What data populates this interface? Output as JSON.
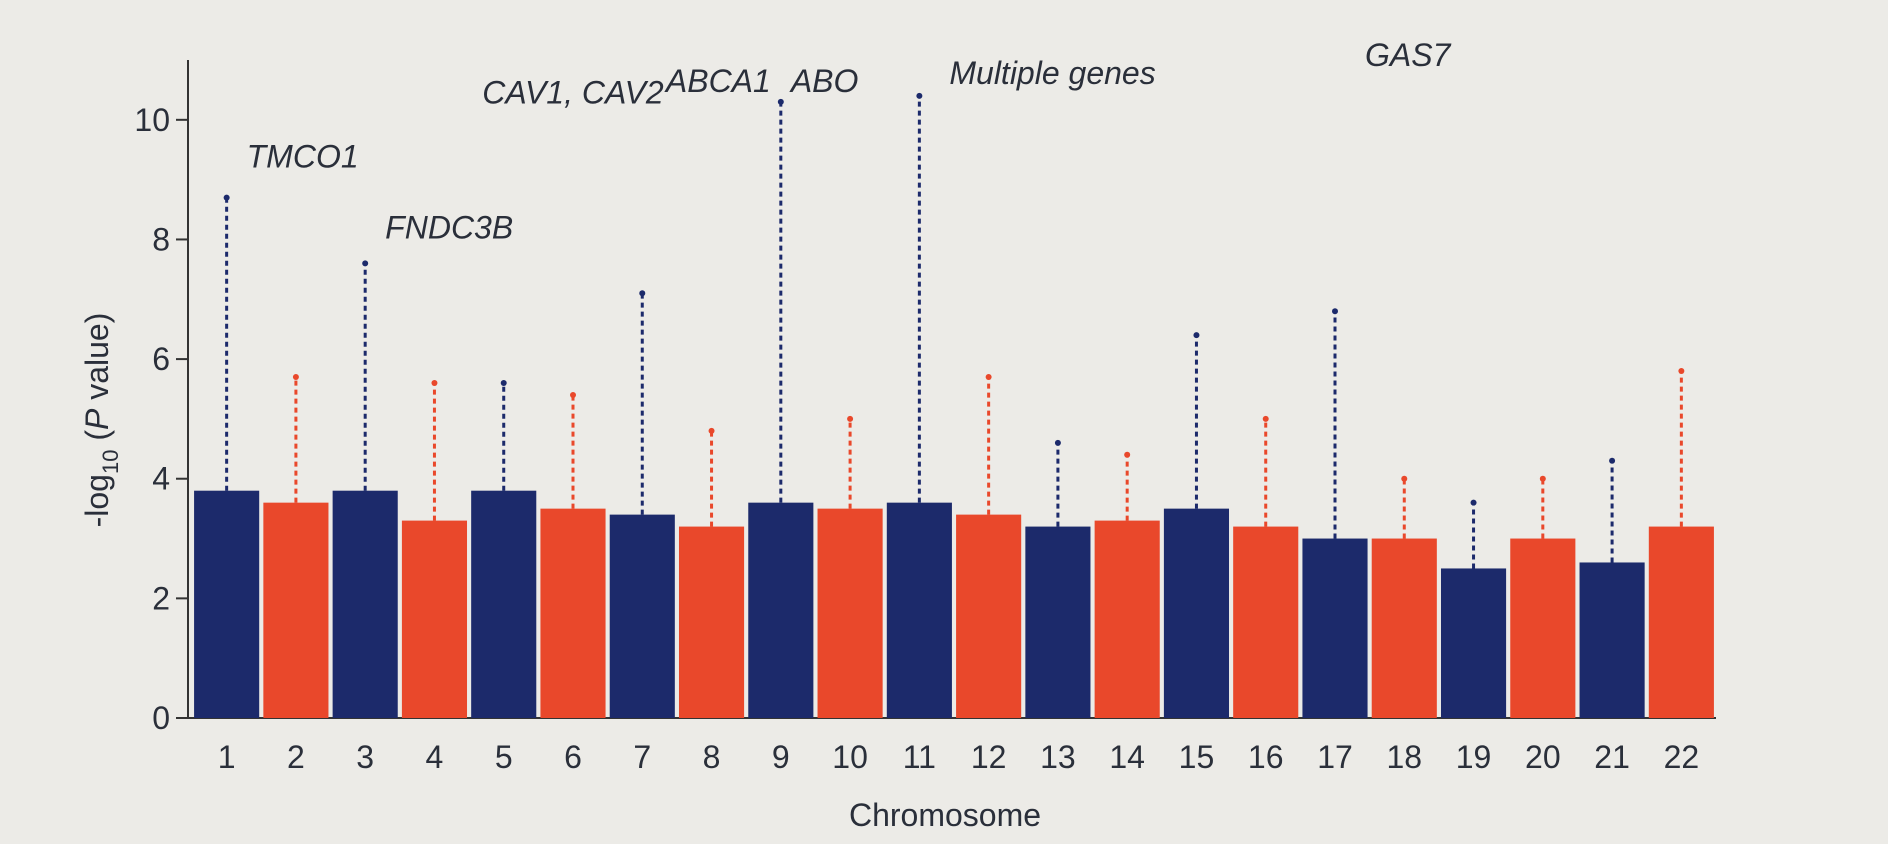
{
  "chart_data": {
    "type": "manhattan",
    "x_label": "Chromosome",
    "y_label": {
      "prefix": "-log",
      "subscript": "10",
      "open": " (",
      "italic": "P",
      "rest": " value)"
    },
    "categories": [
      "1",
      "2",
      "3",
      "4",
      "5",
      "6",
      "7",
      "8",
      "9",
      "10",
      "11",
      "12",
      "13",
      "14",
      "15",
      "16",
      "17",
      "18",
      "19",
      "20",
      "21",
      "22"
    ],
    "values": [
      8.7,
      5.7,
      7.6,
      5.6,
      5.6,
      5.4,
      7.1,
      4.8,
      10.3,
      5.0,
      10.4,
      5.7,
      4.6,
      4.4,
      6.4,
      5.0,
      6.8,
      4.0,
      3.6,
      4.0,
      4.3,
      5.8
    ],
    "typical_values": [
      3.8,
      3.6,
      3.8,
      3.3,
      3.8,
      3.5,
      3.4,
      3.2,
      3.6,
      3.5,
      3.6,
      3.4,
      3.2,
      3.3,
      3.5,
      3.2,
      3.0,
      3.0,
      2.5,
      3.0,
      2.6,
      3.2
    ],
    "colors": [
      "#1c2a6b",
      "#e9482b"
    ],
    "annotations": [
      {
        "text": "TMCO1",
        "x": "1"
      },
      {
        "text": "FNDC3B",
        "x": "3"
      },
      {
        "text": "CAV1, CAV2",
        "x": "7"
      },
      {
        "text": "ABCA1",
        "x": "9"
      },
      {
        "text": "ABO",
        "x": "9"
      },
      {
        "text": "Multiple genes",
        "x": "11"
      },
      {
        "text": "GAS7",
        "x": "17"
      }
    ],
    "ylim": [
      0,
      11
    ],
    "yticks": [
      0,
      2,
      4,
      6,
      8,
      10
    ]
  }
}
